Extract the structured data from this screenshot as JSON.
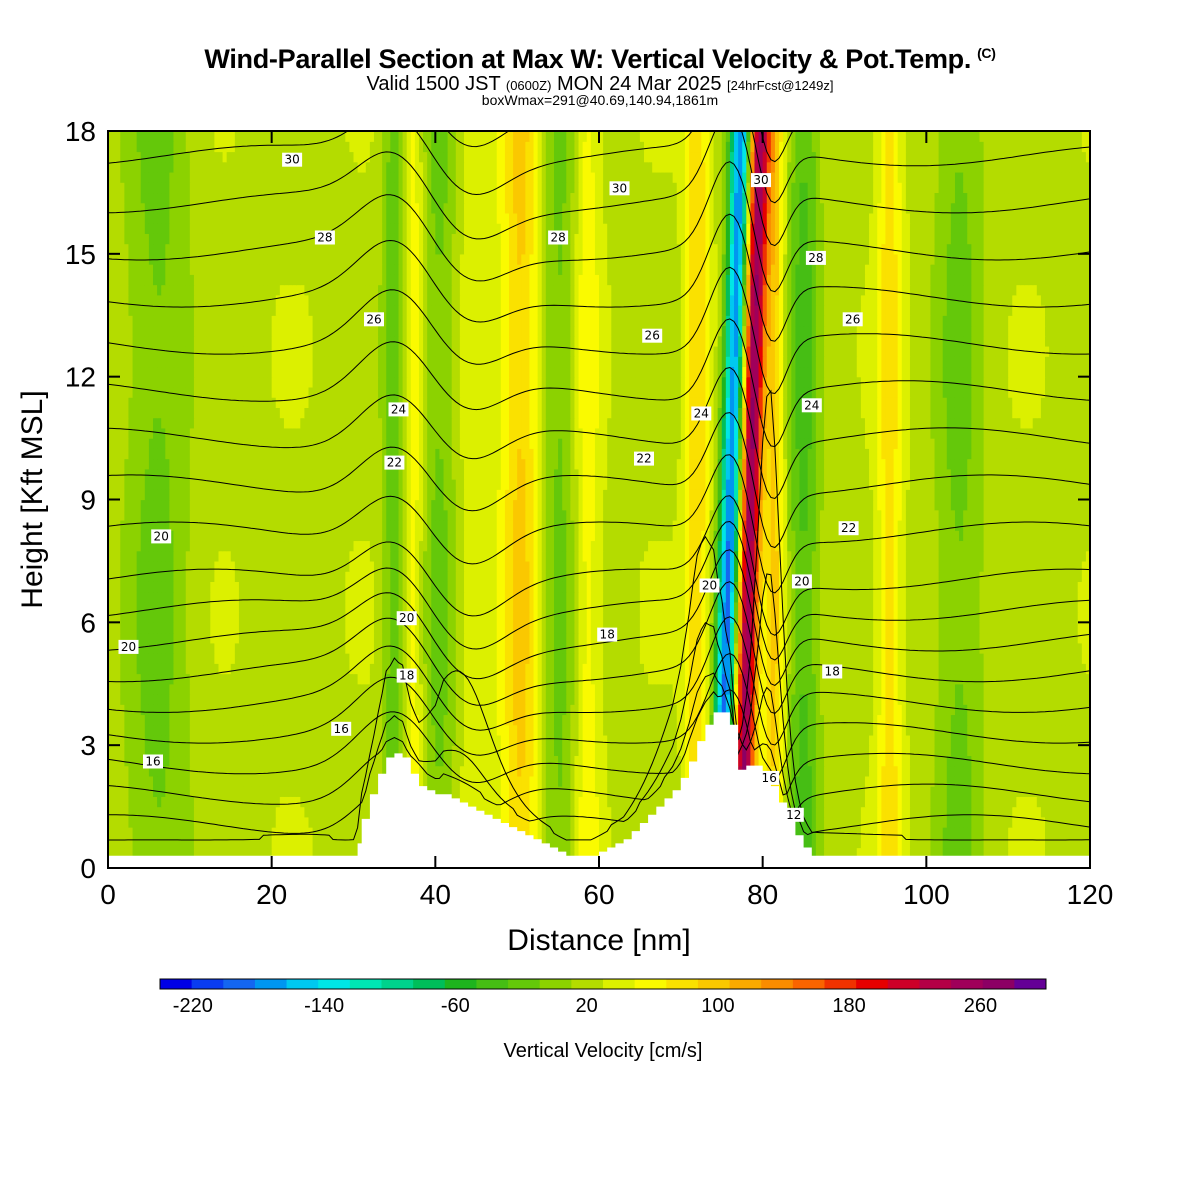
{
  "title": {
    "main": "Wind-Parallel Section at Max W: Vertical Velocity & Pot.Temp.",
    "copyright": "(C)",
    "valid_prefix": "Valid 1500 JST",
    "valid_utc": "(0600Z)",
    "valid_date": "MON 24 Mar 2025",
    "forecast": "[24hrFcst@1249z]",
    "boxinfo": "boxWmax=291@40.69,140.94,1861m"
  },
  "colorbar": {
    "label": "Vertical Velocity [cm/s]",
    "tick_labels": [
      "-220",
      "-140",
      "-60",
      "20",
      "100",
      "180",
      "260"
    ],
    "tick_values": [
      -220,
      -140,
      -60,
      20,
      100,
      180,
      260
    ],
    "min": -240,
    "max": 300,
    "step": 20,
    "colors": [
      "#0000e6",
      "#0a3cf0",
      "#1466f0",
      "#0096f0",
      "#00c8f0",
      "#00e6e6",
      "#00e6b4",
      "#00d28c",
      "#00be5a",
      "#1eb41e",
      "#46be14",
      "#64c80a",
      "#8cd200",
      "#b4dc00",
      "#dcf000",
      "#fafa00",
      "#fae100",
      "#fac800",
      "#faaa00",
      "#fa8c00",
      "#fa6400",
      "#f03200",
      "#e60000",
      "#cd0028",
      "#b40046",
      "#a0005a",
      "#8c0064",
      "#640096"
    ]
  },
  "chart_data": {
    "type": "heatmap",
    "title": "Wind-Parallel Section at Max W: Vertical Velocity & Pot.Temp.",
    "xlabel": "Distance [nm]",
    "ylabel": "Height [Kft MSL]",
    "xlim": [
      0,
      120
    ],
    "ylim": [
      0,
      18
    ],
    "xticks": [
      0,
      20,
      40,
      60,
      80,
      100,
      120
    ],
    "yticks": [
      0,
      3,
      6,
      9,
      12,
      15,
      18
    ],
    "grid": false,
    "fill_variable": "Vertical Velocity [cm/s]",
    "contour_variable": "Potential Temperature (C)",
    "terrain_kft": {
      "x": [
        0,
        30,
        30.5,
        31,
        32,
        33,
        34,
        35,
        36,
        37,
        38,
        39,
        40,
        41,
        42,
        43,
        44,
        45,
        46,
        47,
        48,
        49,
        50,
        51,
        52,
        53,
        54,
        55,
        56,
        57,
        58,
        59,
        60,
        61,
        62,
        63,
        64,
        65,
        66,
        67,
        68,
        69,
        70,
        71,
        72,
        73,
        74,
        75,
        76,
        77,
        78,
        79,
        80,
        81,
        82,
        83,
        84,
        85,
        86,
        120
      ],
      "h": [
        0.3,
        0.3,
        0.6,
        1.2,
        1.8,
        2.3,
        2.7,
        2.8,
        2.7,
        2.3,
        2.0,
        1.9,
        1.8,
        1.8,
        1.7,
        1.6,
        1.5,
        1.4,
        1.3,
        1.2,
        1.1,
        1.0,
        0.9,
        0.8,
        0.7,
        0.6,
        0.5,
        0.4,
        0.3,
        0.3,
        0.3,
        0.3,
        0.4,
        0.5,
        0.6,
        0.7,
        0.9,
        1.1,
        1.3,
        1.5,
        1.7,
        1.9,
        2.2,
        2.6,
        3.1,
        3.5,
        3.8,
        3.8,
        3.5,
        2.4,
        2.5,
        2.5,
        2.3,
        2.0,
        1.6,
        1.2,
        0.8,
        0.5,
        0.3,
        0.3
      ]
    },
    "velocity_bands": [
      {
        "x": 35.5,
        "dx": 0.0,
        "width": 1.6,
        "w": -80
      },
      {
        "x": 36.8,
        "dx": 0.0,
        "width": 1.6,
        "w": 70
      },
      {
        "x": 40.5,
        "dx": 0.0,
        "width": 2.5,
        "w": -40
      },
      {
        "x": 44.5,
        "dx": 0.0,
        "width": 2.5,
        "w": 20
      },
      {
        "x": 50.5,
        "dx": 0.0,
        "width": 2.5,
        "w": 70
      },
      {
        "x": 55.0,
        "dx": 0.0,
        "width": 2.5,
        "w": -40
      },
      {
        "x": 58.5,
        "dx": 0.0,
        "width": 1.6,
        "w": 40
      },
      {
        "x": 72.0,
        "dx": 0.0,
        "width": 1.5,
        "w": 60
      },
      {
        "x": 74.8,
        "dx": 2.6,
        "width": 1.3,
        "w": -220
      },
      {
        "x": 77.4,
        "dx": 2.2,
        "width": 1.3,
        "w": 250
      },
      {
        "x": 81.5,
        "dx": 0.0,
        "width": 1.2,
        "w": 70
      },
      {
        "x": 85.0,
        "dx": 0.0,
        "width": 2.0,
        "w": -60
      },
      {
        "x": 95.5,
        "dx": 0.0,
        "width": 1.5,
        "w": 55
      },
      {
        "x": 6.0,
        "dx": 0.0,
        "width": 4.0,
        "w": -40
      },
      {
        "x": 104.0,
        "dx": 0.0,
        "width": 3.0,
        "w": -40
      }
    ],
    "theta_levels": [
      12,
      13,
      14,
      15,
      16,
      17,
      18,
      19,
      20,
      21,
      22,
      23,
      24,
      25,
      26,
      27,
      28,
      29,
      30,
      31
    ],
    "contour_labels": [
      {
        "text": "30",
        "x": 22.5,
        "y": 17.3
      },
      {
        "text": "30",
        "x": 62.5,
        "y": 16.6
      },
      {
        "text": "30",
        "x": 79.8,
        "y": 16.8
      },
      {
        "text": "28",
        "x": 26.5,
        "y": 15.4
      },
      {
        "text": "28",
        "x": 55.0,
        "y": 15.4
      },
      {
        "text": "28",
        "x": 86.5,
        "y": 14.9
      },
      {
        "text": "26",
        "x": 32.5,
        "y": 13.4
      },
      {
        "text": "26",
        "x": 66.5,
        "y": 13.0
      },
      {
        "text": "26",
        "x": 91.0,
        "y": 13.4
      },
      {
        "text": "24",
        "x": 35.5,
        "y": 11.2
      },
      {
        "text": "24",
        "x": 72.5,
        "y": 11.1
      },
      {
        "text": "24",
        "x": 86.0,
        "y": 11.3
      },
      {
        "text": "22",
        "x": 35.0,
        "y": 9.9
      },
      {
        "text": "22",
        "x": 65.5,
        "y": 10.0
      },
      {
        "text": "22",
        "x": 90.5,
        "y": 8.3
      },
      {
        "text": "20",
        "x": 6.5,
        "y": 8.1
      },
      {
        "text": "20",
        "x": 2.5,
        "y": 5.4
      },
      {
        "text": "20",
        "x": 36.5,
        "y": 6.1
      },
      {
        "text": "20",
        "x": 73.5,
        "y": 6.9
      },
      {
        "text": "20",
        "x": 84.8,
        "y": 7.0
      },
      {
        "text": "18",
        "x": 36.5,
        "y": 4.7
      },
      {
        "text": "18",
        "x": 61.0,
        "y": 5.7
      },
      {
        "text": "18",
        "x": 88.5,
        "y": 4.8
      },
      {
        "text": "16",
        "x": 28.5,
        "y": 3.4
      },
      {
        "text": "16",
        "x": 5.5,
        "y": 2.6
      },
      {
        "text": "16",
        "x": 80.8,
        "y": 2.2
      },
      {
        "text": "12",
        "x": 83.8,
        "y": 1.3
      }
    ]
  }
}
